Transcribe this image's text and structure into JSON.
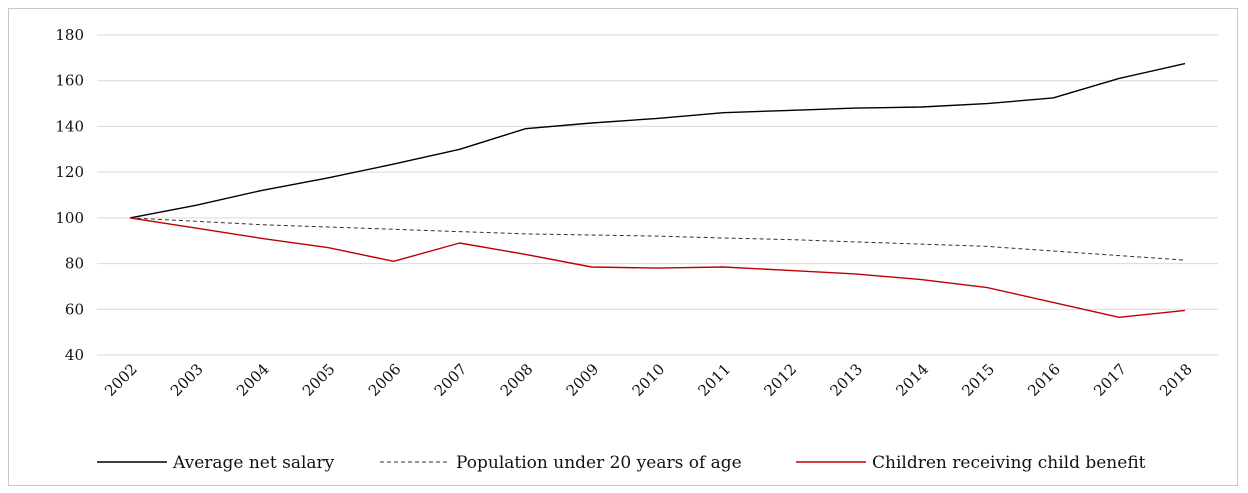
{
  "chart_data": {
    "type": "line",
    "title": "",
    "xlabel": "",
    "ylabel": "",
    "ylim": [
      40,
      180
    ],
    "yticks": [
      40,
      60,
      80,
      100,
      120,
      140,
      160,
      180
    ],
    "grid": true,
    "legend_position": "bottom",
    "categories": [
      "2002",
      "2003",
      "2004",
      "2005",
      "2006",
      "2007",
      "2008",
      "2009",
      "2010",
      "2011",
      "2012",
      "2013",
      "2014",
      "2015",
      "2016",
      "2017",
      "2018"
    ],
    "series": [
      {
        "name": "Average net salary",
        "color": "#000000",
        "style": "solid",
        "values": [
          100,
          105.5,
          112,
          117.5,
          123.5,
          130,
          139,
          141.5,
          143.5,
          146,
          147,
          148,
          148.5,
          150,
          152.5,
          161,
          167.5
        ]
      },
      {
        "name": "Population under 20 years of age",
        "color": "#333333",
        "style": "dashed",
        "values": [
          100,
          98.5,
          97,
          96,
          95,
          94,
          93,
          92.5,
          92,
          91.2,
          90.5,
          89.5,
          88.5,
          87.5,
          85.5,
          83.5,
          81.5
        ]
      },
      {
        "name": "Children receiving child benefit",
        "color": "#c00000",
        "style": "solid",
        "values": [
          100,
          95.5,
          91,
          87,
          81,
          89,
          84,
          78.5,
          78,
          78.5,
          77,
          75.5,
          73,
          69.5,
          63,
          56.5,
          59.5
        ]
      }
    ]
  }
}
